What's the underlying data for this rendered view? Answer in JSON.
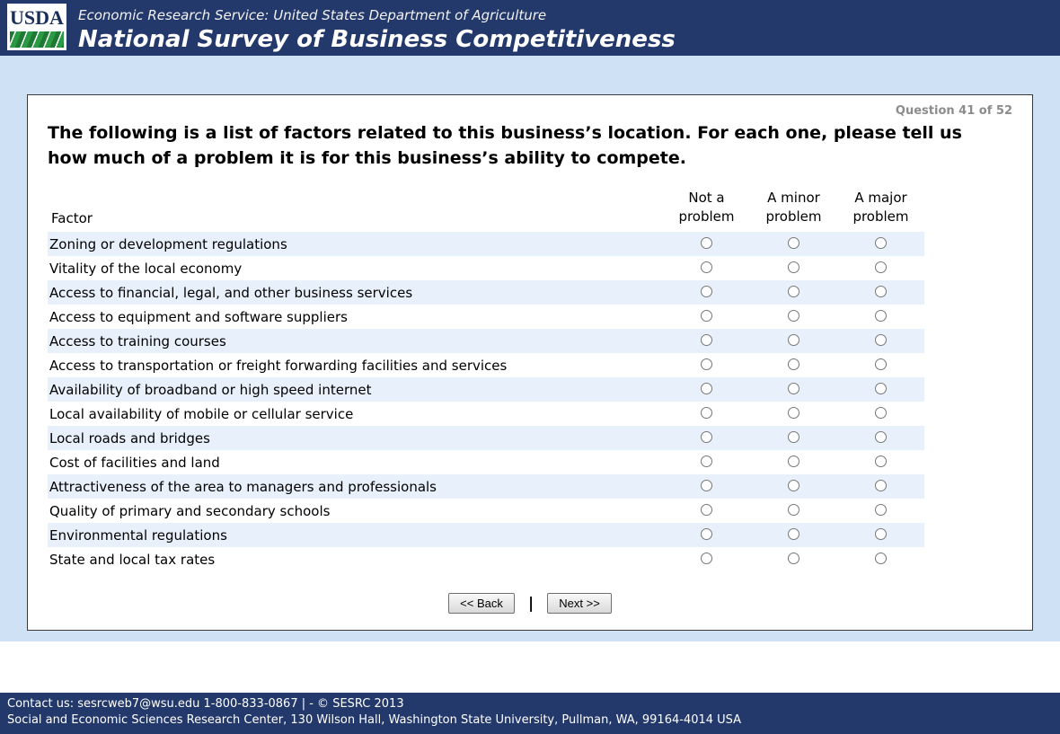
{
  "colors": {
    "header_background": "#24396b",
    "page_background": "#cfe1f5",
    "row_alternate": "#e8f1fb",
    "footer_background": "#24396b"
  },
  "header": {
    "logo_text": "USDA",
    "agency_line": "Economic Research Service: United States Department of Agriculture",
    "survey_title": "National Survey of Business Competitiveness"
  },
  "question": {
    "progress": "Question 41 of 52",
    "prompt": "The following is a list of factors related to this business’s location. For each one, please tell us how much of a problem it is for this business’s ability to compete.",
    "table": {
      "factor_header": "Factor",
      "columns": [
        "Not a problem",
        "A minor problem",
        "A major problem"
      ],
      "rows": [
        "Zoning or development regulations",
        "Vitality of the local economy",
        "Access to financial, legal, and other business services",
        "Access to equipment and software suppliers",
        "Access to training courses",
        "Access to transportation or freight forwarding facilities and services",
        "Availability of broadband or high speed internet",
        "Local availability of mobile or cellular service",
        "Local roads and bridges",
        "Cost of facilities and land",
        "Attractiveness of the area to managers and professionals",
        "Quality of primary and secondary schools",
        "Environmental regulations",
        "State and local tax rates"
      ]
    },
    "nav": {
      "back_label": "<< Back",
      "separator": "|",
      "next_label": "Next >>"
    }
  },
  "footer": {
    "line1": "Contact us: sesrcweb7@wsu.edu 1-800-833-0867 | - © SESRC 2013",
    "line2": "Social and Economic Sciences Research Center, 130 Wilson Hall, Washington State University, Pullman, WA, 99164-4014 USA"
  }
}
